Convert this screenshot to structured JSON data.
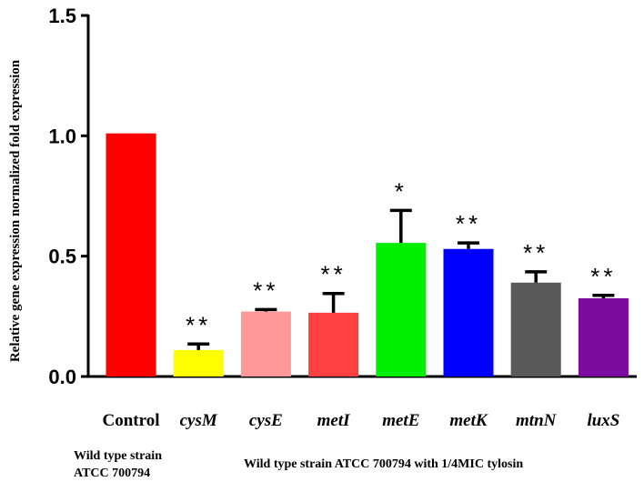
{
  "chart_data": {
    "type": "bar",
    "title": "",
    "ylabel": "Relative gene expression normalized fold expression",
    "xlabel": "",
    "ylim": [
      0,
      1.5
    ],
    "yticks": [
      "0.0",
      "0.5",
      "1.0",
      "1.5"
    ],
    "ytick_values": [
      0,
      0.5,
      1.0,
      1.5
    ],
    "grid": false,
    "categories": [
      "Control",
      "cysM",
      "cysE",
      "metI",
      "metE",
      "metK",
      "mtnN",
      "luxS"
    ],
    "values": [
      1.01,
      0.11,
      0.27,
      0.265,
      0.555,
      0.53,
      0.39,
      0.325
    ],
    "errors": [
      0,
      0.025,
      0.008,
      0.08,
      0.135,
      0.025,
      0.045,
      0.012
    ],
    "colors": [
      "#ff0000",
      "#ffff00",
      "#ff9999",
      "#ff4040",
      "#00ee00",
      "#0000ff",
      "#595959",
      "#7a0b9e"
    ],
    "significance": [
      "",
      "**",
      "**",
      "**",
      "*",
      "**",
      "**",
      "**"
    ],
    "groups": [
      {
        "label_line1": "Wild type strain",
        "label_line2": "ATCC 700794"
      },
      {
        "label_line1": "Wild type strain ATCC 700794 with 1/4MIC tylosin",
        "label_line2": ""
      }
    ]
  }
}
